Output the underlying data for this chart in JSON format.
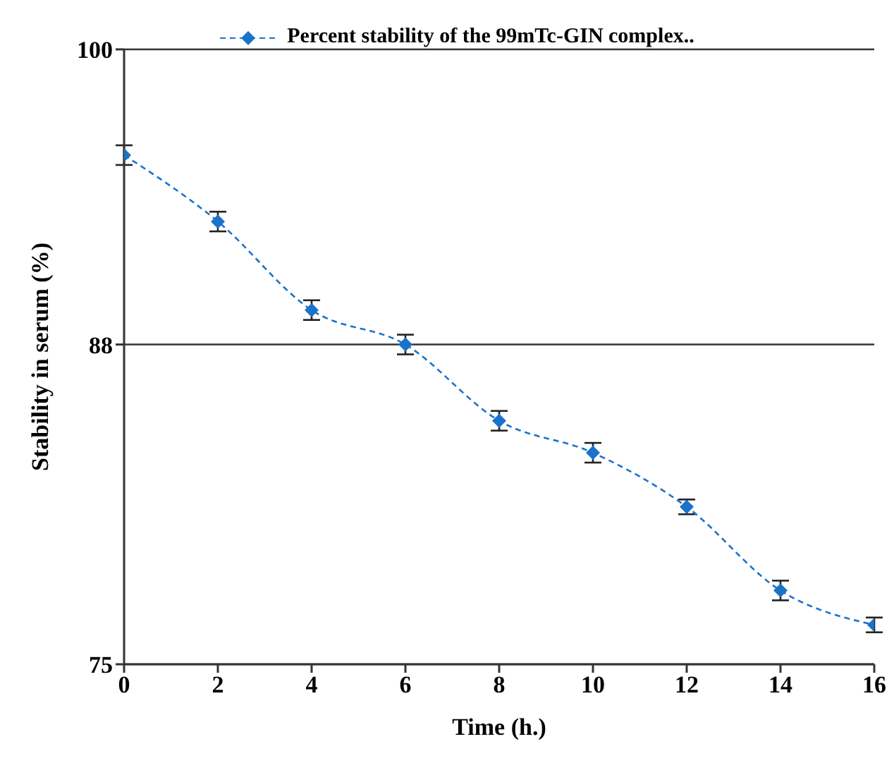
{
  "chart_data": {
    "type": "line",
    "xlabel": "Time (h.)",
    "ylabel": "Stability in serum (%)",
    "x": [
      0,
      2,
      4,
      6,
      8,
      10,
      12,
      14,
      16
    ],
    "series": [
      {
        "name": "Percent stability of the 99mTc-GIN complex..",
        "color": "#1a73c9",
        "values": [
          95.7,
          93.0,
          89.4,
          88.0,
          84.9,
          83.6,
          81.4,
          78.0,
          76.6
        ],
        "errors": [
          0.4,
          0.4,
          0.4,
          0.4,
          0.4,
          0.4,
          0.3,
          0.4,
          0.3
        ]
      }
    ],
    "xlim": [
      0,
      16
    ],
    "xticks": [
      0,
      2,
      4,
      6,
      8,
      10,
      12,
      14,
      16
    ],
    "ylim": [
      75,
      100
    ],
    "yticks": [
      75,
      88,
      100
    ],
    "grid": "y",
    "legend": "top",
    "marker": "diamond",
    "line_style": "dashed"
  }
}
